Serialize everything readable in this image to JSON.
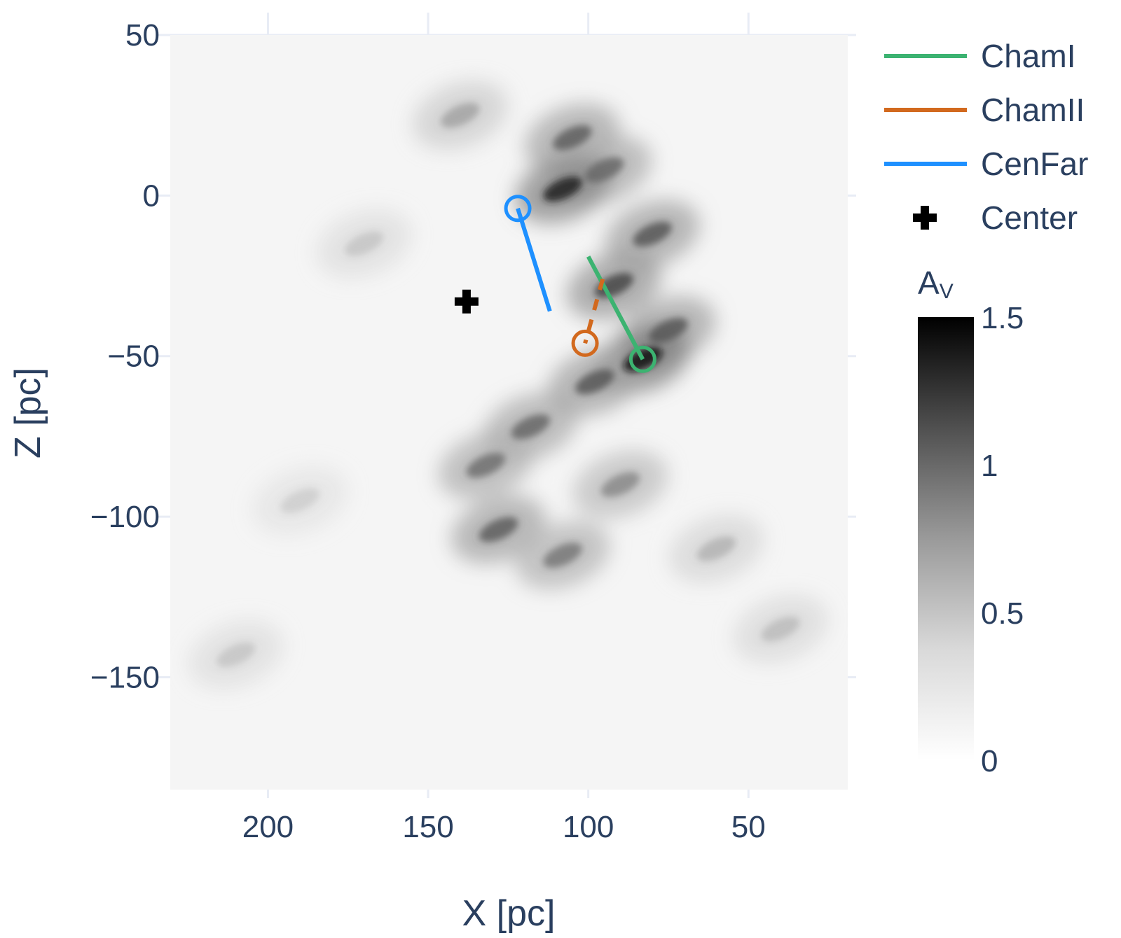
{
  "colors": {
    "background": "#ffffff",
    "plot_background": "#f5f5f5",
    "text": "#2a3f5f",
    "grid": "#e8ecf5",
    "ChamI": "#3cb371",
    "ChamII": "#d2691e",
    "CenFar": "#1e90ff",
    "Center": "#000000"
  },
  "chart_data": {
    "type": "heatmap",
    "xlabel": "X [pc]",
    "ylabel": "Z [pc]",
    "xlim": [
      230.5,
      19
    ],
    "ylim": [
      -185,
      50
    ],
    "x_axis_reversed": true,
    "xticks": [
      200,
      150,
      100,
      50
    ],
    "xtick_labels": [
      "200",
      "150",
      "100",
      "50"
    ],
    "yticks": [
      50,
      0,
      -50,
      -100,
      -150
    ],
    "ytick_labels": [
      "50",
      "0",
      "−50",
      "−100",
      "−150"
    ],
    "grid": true,
    "heatmap": {
      "quantity": "Av",
      "colorscale": "greys",
      "zmin": 0,
      "zmax": 1.5,
      "dust_clouds": [
        {
          "x": 105,
          "z": 18,
          "peak": 0.95
        },
        {
          "x": 95,
          "z": 8,
          "peak": 0.9
        },
        {
          "x": 108,
          "z": 2,
          "peak": 1.3
        },
        {
          "x": 80,
          "z": -12,
          "peak": 1.0
        },
        {
          "x": 92,
          "z": -28,
          "peak": 1.1
        },
        {
          "x": 75,
          "z": -42,
          "peak": 1.0
        },
        {
          "x": 83,
          "z": -51,
          "peak": 1.4
        },
        {
          "x": 98,
          "z": -58,
          "peak": 1.0
        },
        {
          "x": 118,
          "z": -72,
          "peak": 0.9
        },
        {
          "x": 132,
          "z": -84,
          "peak": 0.85
        },
        {
          "x": 90,
          "z": -90,
          "peak": 0.7
        },
        {
          "x": 128,
          "z": -104,
          "peak": 0.95
        },
        {
          "x": 108,
          "z": -112,
          "peak": 0.8
        },
        {
          "x": 60,
          "z": -110,
          "peak": 0.45
        },
        {
          "x": 40,
          "z": -135,
          "peak": 0.4
        },
        {
          "x": 210,
          "z": -143,
          "peak": 0.35
        },
        {
          "x": 190,
          "z": -95,
          "peak": 0.3
        },
        {
          "x": 170,
          "z": -15,
          "peak": 0.35
        },
        {
          "x": 140,
          "z": 25,
          "peak": 0.55
        }
      ]
    },
    "series": [
      {
        "name": "ChamI",
        "type": "line",
        "color": "#3cb371",
        "points": [
          {
            "x": 100,
            "y": -19
          },
          {
            "x": 83,
            "y": -51
          }
        ],
        "marker": {
          "x": 83,
          "y": -51,
          "symbol": "circle-open"
        }
      },
      {
        "name": "ChamII",
        "type": "line",
        "color": "#d2691e",
        "dashed": true,
        "points": [
          {
            "x": 95.5,
            "y": -26
          },
          {
            "x": 101,
            "y": -46
          }
        ],
        "marker": {
          "x": 101,
          "y": -46,
          "symbol": "circle-open"
        }
      },
      {
        "name": "CenFar",
        "type": "line",
        "color": "#1e90ff",
        "points": [
          {
            "x": 122,
            "y": -4
          },
          {
            "x": 112,
            "y": -36
          }
        ],
        "marker": {
          "x": 122,
          "y": -4,
          "symbol": "circle-open"
        }
      },
      {
        "name": "Center",
        "type": "scatter",
        "color": "#000000",
        "points": [
          {
            "x": 138,
            "y": -33
          }
        ],
        "marker": {
          "symbol": "cross"
        }
      }
    ],
    "legend": {
      "position": "top-right",
      "entries": [
        "ChamI",
        "ChamII",
        "CenFar",
        "Center"
      ]
    },
    "colorbar": {
      "title": "A",
      "title_subscript": "V",
      "min": 0,
      "max": 1.5,
      "ticks": [
        0,
        0.5,
        1,
        1.5
      ],
      "tick_labels": [
        "0",
        "0.5",
        "1",
        "1.5"
      ]
    }
  }
}
